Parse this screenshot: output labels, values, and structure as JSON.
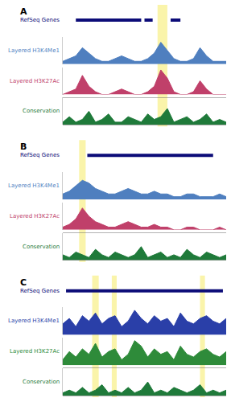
{
  "chart_data": {
    "type": "genome_tracks",
    "tick_labels": false,
    "panels": [
      {
        "label": "A",
        "xlim": [
          0,
          100
        ],
        "x": [
          0,
          4,
          8,
          12,
          16,
          20,
          24,
          28,
          32,
          36,
          40,
          44,
          48,
          52,
          56,
          60,
          64,
          68,
          72,
          76,
          80,
          84,
          88,
          92,
          96,
          100
        ],
        "highlights": [
          [
            58,
            64
          ]
        ],
        "genes": {
          "name": "RefSeq Genes",
          "color": "#0c0c78",
          "intervals": [
            [
              8,
              48
            ],
            [
              50,
              55
            ],
            [
              66,
              72
            ]
          ]
        },
        "tracks": [
          {
            "name": "Layered H3K4Me1",
            "color": "#4f7fbf",
            "ylim": [
              0,
              10
            ],
            "values": [
              1,
              2,
              3,
              6,
              4,
              2,
              1,
              1,
              2,
              3,
              2,
              1,
              1,
              2,
              4,
              8,
              5,
              2,
              1,
              1,
              2,
              6,
              3,
              1,
              1,
              1
            ]
          },
          {
            "name": "Layered H3K27Ac",
            "color": "#c0406a",
            "ylim": [
              0,
              10
            ],
            "values": [
              0,
              1,
              2,
              7,
              3,
              1,
              0,
              0,
              1,
              2,
              1,
              0,
              0,
              1,
              3,
              9,
              6,
              1,
              0,
              0,
              1,
              5,
              2,
              0,
              0,
              0
            ]
          },
          {
            "name": "Conservation",
            "color": "#1f7a3a",
            "ylim": [
              0,
              10
            ],
            "values": [
              1,
              3,
              1,
              2,
              5,
              1,
              2,
              4,
              1,
              1,
              3,
              2,
              1,
              4,
              2,
              3,
              6,
              1,
              2,
              3,
              1,
              2,
              4,
              1,
              2,
              1
            ]
          }
        ]
      },
      {
        "label": "B",
        "xlim": [
          0,
          100
        ],
        "x": [
          0,
          4,
          8,
          12,
          16,
          20,
          24,
          28,
          32,
          36,
          40,
          44,
          48,
          52,
          56,
          60,
          64,
          68,
          72,
          76,
          80,
          84,
          88,
          92,
          96,
          100
        ],
        "highlights": [
          [
            10,
            14
          ]
        ],
        "genes": {
          "name": "RefSeq Genes",
          "color": "#0c0c78",
          "intervals": [
            [
              15,
              92
            ]
          ]
        },
        "tracks": [
          {
            "name": "Layered H3K4Me1",
            "color": "#4f7fbf",
            "ylim": [
              0,
              10
            ],
            "values": [
              2,
              3,
              5,
              7,
              6,
              4,
              3,
              2,
              2,
              3,
              4,
              3,
              2,
              2,
              3,
              2,
              2,
              1,
              1,
              2,
              2,
              1,
              1,
              1,
              2,
              1
            ]
          },
          {
            "name": "Layered H3K27Ac",
            "color": "#c0406a",
            "ylim": [
              0,
              10
            ],
            "values": [
              1,
              2,
              4,
              8,
              5,
              3,
              2,
              1,
              1,
              2,
              3,
              2,
              1,
              1,
              2,
              1,
              1,
              0,
              0,
              1,
              1,
              0,
              0,
              0,
              1,
              0
            ]
          },
          {
            "name": "Conservation",
            "color": "#1f7a3a",
            "ylim": [
              0,
              10
            ],
            "values": [
              2,
              1,
              3,
              2,
              1,
              4,
              2,
              1,
              3,
              2,
              1,
              2,
              5,
              1,
              2,
              3,
              1,
              2,
              1,
              4,
              2,
              1,
              3,
              2,
              1,
              2
            ]
          }
        ]
      },
      {
        "label": "C",
        "xlim": [
          0,
          100
        ],
        "x": [
          0,
          4,
          8,
          12,
          16,
          20,
          24,
          28,
          32,
          36,
          40,
          44,
          48,
          52,
          56,
          60,
          64,
          68,
          72,
          76,
          80,
          84,
          88,
          92,
          96,
          100
        ],
        "highlights": [
          [
            18,
            22
          ],
          [
            30,
            33
          ],
          [
            84,
            87
          ]
        ],
        "genes": {
          "name": "RefSeq Genes",
          "color": "#0c0c78",
          "intervals": [
            [
              2,
              98
            ]
          ]
        },
        "tracks": [
          {
            "name": "Layered H3K4Me1",
            "color": "#2a3fa8",
            "ylim": [
              0,
              10
            ],
            "values": [
              4,
              6,
              3,
              7,
              5,
              8,
              4,
              6,
              7,
              3,
              5,
              9,
              6,
              4,
              7,
              5,
              6,
              3,
              8,
              5,
              4,
              6,
              7,
              5,
              4,
              6
            ]
          },
          {
            "name": "Layered H3K27Ac",
            "color": "#2e8b3a",
            "ylim": [
              0,
              10
            ],
            "values": [
              2,
              5,
              3,
              6,
              4,
              8,
              3,
              5,
              6,
              2,
              4,
              9,
              7,
              3,
              6,
              4,
              5,
              2,
              7,
              4,
              3,
              5,
              6,
              4,
              3,
              5
            ]
          },
          {
            "name": "Conservation",
            "color": "#1f7a3a",
            "ylim": [
              0,
              10
            ],
            "values": [
              1,
              2,
              1,
              3,
              1,
              2,
              4,
              1,
              2,
              1,
              3,
              1,
              2,
              5,
              1,
              2,
              1,
              3,
              2,
              1,
              2,
              4,
              1,
              2,
              1,
              2
            ]
          }
        ]
      }
    ]
  }
}
